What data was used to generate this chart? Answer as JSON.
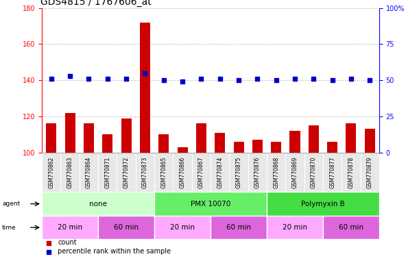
{
  "title": "GDS4815 / 1767606_at",
  "samples": [
    "GSM770862",
    "GSM770863",
    "GSM770864",
    "GSM770871",
    "GSM770872",
    "GSM770873",
    "GSM770865",
    "GSM770866",
    "GSM770867",
    "GSM770874",
    "GSM770875",
    "GSM770876",
    "GSM770868",
    "GSM770869",
    "GSM770870",
    "GSM770877",
    "GSM770878",
    "GSM770879"
  ],
  "counts": [
    116,
    122,
    116,
    110,
    119,
    172,
    110,
    103,
    116,
    111,
    106,
    107,
    106,
    112,
    115,
    106,
    116,
    113
  ],
  "percentiles": [
    51,
    53,
    51,
    51,
    51,
    55,
    50,
    49,
    51,
    51,
    50,
    51,
    50,
    51,
    51,
    50,
    51,
    50
  ],
  "bar_color": "#cc0000",
  "dot_color": "#0000cc",
  "left_ylim": [
    100,
    180
  ],
  "left_yticks": [
    100,
    120,
    140,
    160,
    180
  ],
  "right_ylim": [
    0,
    100
  ],
  "right_yticks": [
    0,
    25,
    50,
    75,
    100
  ],
  "right_yticklabels": [
    "0",
    "25",
    "50",
    "75",
    "100%"
  ],
  "agent_groups": [
    {
      "label": "none",
      "start": 0,
      "end": 6,
      "color": "#ccffcc"
    },
    {
      "label": "PMX 10070",
      "start": 6,
      "end": 12,
      "color": "#66ee66"
    },
    {
      "label": "Polymyxin B",
      "start": 12,
      "end": 18,
      "color": "#44dd44"
    }
  ],
  "time_groups": [
    {
      "label": "20 min",
      "start": 0,
      "end": 3,
      "color": "#ffaaff"
    },
    {
      "label": "60 min",
      "start": 3,
      "end": 6,
      "color": "#dd66dd"
    },
    {
      "label": "20 min",
      "start": 6,
      "end": 9,
      "color": "#ffaaff"
    },
    {
      "label": "60 min",
      "start": 9,
      "end": 12,
      "color": "#dd66dd"
    },
    {
      "label": "20 min",
      "start": 12,
      "end": 15,
      "color": "#ffaaff"
    },
    {
      "label": "60 min",
      "start": 15,
      "end": 18,
      "color": "#dd66dd"
    }
  ],
  "legend_items": [
    {
      "label": "count",
      "color": "#cc0000",
      "marker": "s"
    },
    {
      "label": "percentile rank within the sample",
      "color": "#0000cc",
      "marker": "s"
    }
  ],
  "grid_color": "#888888",
  "background_color": "#ffffff",
  "title_fontsize": 10,
  "tick_fontsize": 7,
  "sample_fontsize": 5.5,
  "row_fontsize": 7.5,
  "legend_fontsize": 7,
  "bar_width": 0.55,
  "sample_row_color": "#e8e8e8"
}
